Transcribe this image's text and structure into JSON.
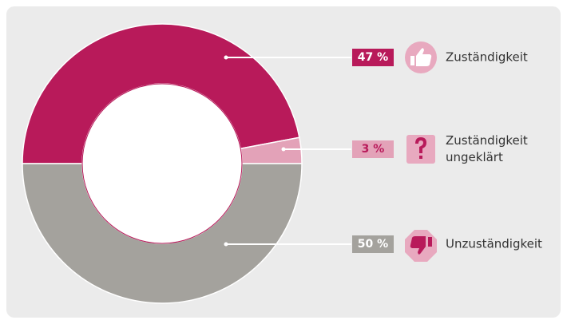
{
  "chart_data": {
    "type": "donut",
    "categories": [
      "Zuständigkeit",
      "Zuständigkeit ungeklärt",
      "Unzuständigkeit"
    ],
    "values": [
      47,
      3,
      50
    ],
    "value_labels": [
      "47 %",
      "3 %",
      "50 %"
    ],
    "colors": [
      "#b81a5a",
      "#e3a2b8",
      "#a4a29d"
    ]
  }
}
